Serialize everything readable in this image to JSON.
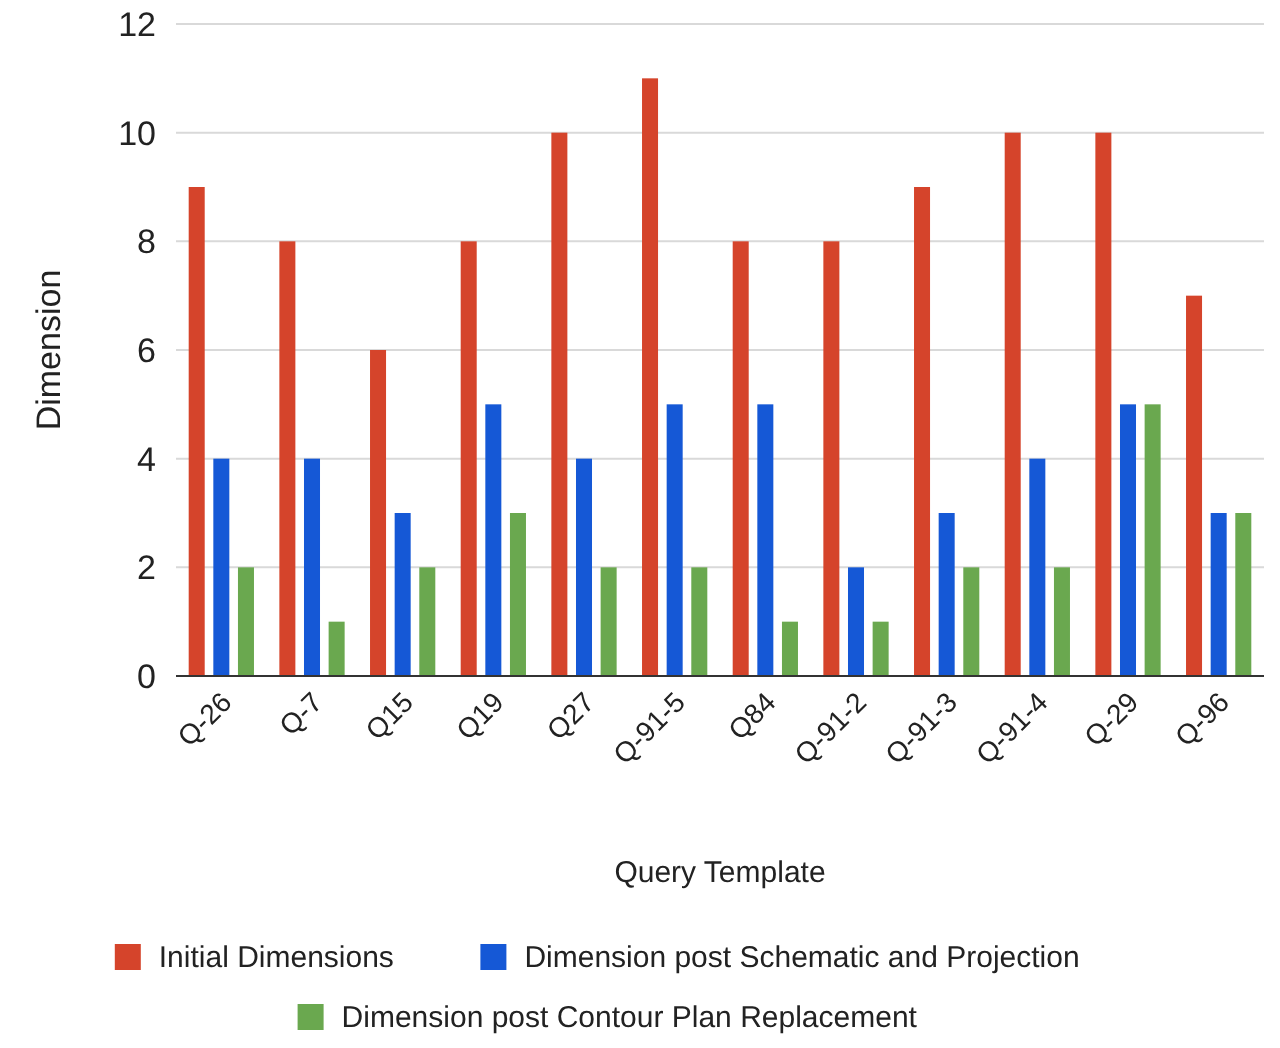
{
  "chart_data": {
    "type": "bar",
    "xlabel": "Query Template",
    "ylabel": "Dimension",
    "categories": [
      "Q-26",
      "Q-7",
      "Q15",
      "Q19",
      "Q27",
      "Q-91-5",
      "Q84",
      "Q-91-2",
      "Q-91-3",
      "Q-91-4",
      "Q-29",
      "Q-96"
    ],
    "series": [
      {
        "name": "Initial Dimensions",
        "color": "#d5442b",
        "values": [
          9,
          8,
          6,
          8,
          10,
          11,
          8,
          8,
          9,
          10,
          10,
          7
        ]
      },
      {
        "name": "Dimension post Schematic and Projection",
        "color": "#1558d6",
        "values": [
          4,
          4,
          3,
          5,
          4,
          5,
          5,
          2,
          3,
          4,
          5,
          3
        ]
      },
      {
        "name": "Dimension post Contour Plan Replacement",
        "color": "#6aa84f",
        "values": [
          2,
          1,
          2,
          3,
          2,
          2,
          1,
          1,
          2,
          2,
          5,
          3
        ]
      }
    ],
    "ylim": [
      0,
      12
    ],
    "yticks": [
      0,
      2,
      4,
      6,
      8,
      10,
      12
    ],
    "grid": "y",
    "legend": "bottom"
  }
}
